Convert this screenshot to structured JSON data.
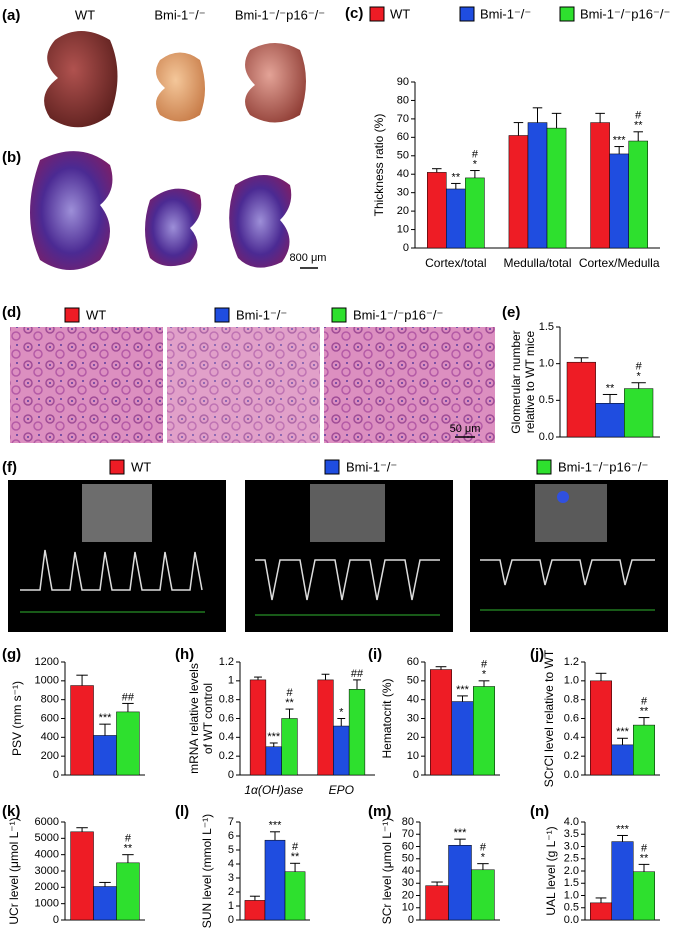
{
  "figure": {
    "a": {
      "label": "(a)",
      "names": [
        "WT",
        "Bmi-1⁻/⁻",
        "Bmi-1⁻/⁻p16⁻/⁻"
      ]
    },
    "b": {
      "label": "(b)",
      "scale": "800 μm"
    },
    "d": {
      "label": "(d)",
      "legend": [
        "WT",
        "Bmi-1⁻/⁻",
        "Bmi-1⁻/⁻p16⁻/⁻"
      ],
      "scale": "50 μm"
    },
    "f": {
      "label": "(f)",
      "legend": [
        "WT",
        "Bmi-1⁻/⁻",
        "Bmi-1⁻/⁻p16⁻/⁻"
      ]
    }
  },
  "chart_data": [
    {
      "type": "bar",
      "label": "(c)",
      "ylabel": [
        "Thickness ratio (%)"
      ],
      "legend": true,
      "categories": [
        "Cortex/total",
        "Medulla/total",
        "Cortex/Medulla"
      ],
      "ylim": [
        0,
        90
      ],
      "yticks": [
        0,
        10,
        20,
        30,
        40,
        50,
        60,
        70,
        80,
        90
      ],
      "series": [
        {
          "name": "WT",
          "color": "#ee1c25",
          "values": [
            41,
            61,
            68
          ],
          "errors": [
            2,
            7,
            5
          ],
          "annotations": [
            null,
            null,
            null
          ]
        },
        {
          "name": "Bmi-1⁻/⁻",
          "color": "#1f4de0",
          "values": [
            32,
            68,
            51
          ],
          "errors": [
            3,
            8,
            4
          ],
          "annotations": [
            [
              "**"
            ],
            null,
            [
              "***"
            ]
          ]
        },
        {
          "name": "Bmi-1⁻/⁻p16⁻/⁻",
          "color": "#2ee02e",
          "values": [
            38,
            65,
            58
          ],
          "errors": [
            4,
            8,
            5
          ],
          "annotations": [
            [
              "#",
              "*"
            ],
            null,
            [
              "#",
              "**"
            ]
          ]
        }
      ]
    },
    {
      "type": "bar",
      "label": "(e)",
      "ylabel": [
        "Glomerular number",
        "relative to WT mice"
      ],
      "ylim": [
        0,
        1.5
      ],
      "yticks": [
        {
          "value": 0,
          "label": "0.0"
        },
        0.5,
        {
          "value": 1,
          "label": "1.0"
        },
        1.5
      ],
      "series": [
        {
          "color": "#ee1c25",
          "values": [
            1.02
          ],
          "errors": [
            0.06
          ],
          "annotations": [
            null
          ]
        },
        {
          "color": "#1f4de0",
          "values": [
            0.46
          ],
          "errors": [
            0.12
          ],
          "annotations": [
            [
              "**"
            ]
          ]
        },
        {
          "color": "#2ee02e",
          "values": [
            0.66
          ],
          "errors": [
            0.08
          ],
          "annotations": [
            [
              "#",
              "*"
            ]
          ]
        }
      ]
    },
    {
      "type": "bar",
      "label": "(g)",
      "ylabel": [
        "PSV (mm s⁻¹)"
      ],
      "ylim": [
        0,
        1200
      ],
      "yticks": [
        0,
        200,
        400,
        600,
        800,
        1000,
        1200
      ],
      "series": [
        {
          "color": "#ee1c25",
          "values": [
            950
          ],
          "errors": [
            110
          ],
          "annotations": [
            null
          ]
        },
        {
          "color": "#1f4de0",
          "values": [
            420
          ],
          "errors": [
            120
          ],
          "annotations": [
            [
              "***"
            ]
          ]
        },
        {
          "color": "#2ee02e",
          "values": [
            670
          ],
          "errors": [
            90
          ],
          "annotations": [
            [
              "##"
            ]
          ]
        }
      ]
    },
    {
      "type": "bar",
      "label": "(h)",
      "ylabel": [
        "mRNA  relative levels",
        "of WT control"
      ],
      "categories": [
        "1α(OH)ase",
        "EPO"
      ],
      "italic_categories": true,
      "ylim": [
        0,
        1.2
      ],
      "yticks": [
        0,
        0.2,
        0.4,
        0.6,
        0.8,
        1,
        1.2
      ],
      "series": [
        {
          "color": "#ee1c25",
          "values": [
            1.01,
            1.01
          ],
          "errors": [
            0.03,
            0.06
          ],
          "annotations": [
            null,
            null
          ]
        },
        {
          "color": "#1f4de0",
          "values": [
            0.3,
            0.52
          ],
          "errors": [
            0.04,
            0.08
          ],
          "annotations": [
            [
              "***"
            ],
            [
              "*"
            ]
          ]
        },
        {
          "color": "#2ee02e",
          "values": [
            0.6,
            0.91
          ],
          "errors": [
            0.1,
            0.1
          ],
          "annotations": [
            [
              "#",
              "**"
            ],
            [
              "##"
            ]
          ]
        }
      ]
    },
    {
      "type": "bar",
      "label": "(i)",
      "ylabel": [
        "Hematocrit (%)"
      ],
      "ylim": [
        0,
        60
      ],
      "yticks": [
        0,
        10,
        20,
        30,
        40,
        50,
        60
      ],
      "series": [
        {
          "color": "#ee1c25",
          "values": [
            56
          ],
          "errors": [
            1.5
          ],
          "annotations": [
            null
          ]
        },
        {
          "color": "#1f4de0",
          "values": [
            39
          ],
          "errors": [
            3
          ],
          "annotations": [
            [
              "***"
            ]
          ]
        },
        {
          "color": "#2ee02e",
          "values": [
            47
          ],
          "errors": [
            3
          ],
          "annotations": [
            [
              "#",
              "*"
            ]
          ]
        }
      ]
    },
    {
      "type": "bar",
      "label": "(j)",
      "ylabel": [
        "SCrCl level relative to WT"
      ],
      "ylim": [
        0,
        1.2
      ],
      "yticks": [
        {
          "value": 0,
          "label": "0.0"
        },
        0.2,
        0.4,
        0.6,
        0.8,
        {
          "value": 1,
          "label": "1.0"
        },
        1.2
      ],
      "series": [
        {
          "color": "#ee1c25",
          "values": [
            1.0
          ],
          "errors": [
            0.08
          ],
          "annotations": [
            null
          ]
        },
        {
          "color": "#1f4de0",
          "values": [
            0.32
          ],
          "errors": [
            0.07
          ],
          "annotations": [
            [
              "***"
            ]
          ]
        },
        {
          "color": "#2ee02e",
          "values": [
            0.53
          ],
          "errors": [
            0.08
          ],
          "annotations": [
            [
              "#",
              "**"
            ]
          ]
        }
      ]
    },
    {
      "type": "bar",
      "label": "(k)",
      "ylabel": [
        "UCr level (μmol L⁻¹)"
      ],
      "ylim": [
        0,
        6000
      ],
      "yticks": [
        0,
        1000,
        2000,
        3000,
        4000,
        5000,
        6000
      ],
      "series": [
        {
          "color": "#ee1c25",
          "values": [
            5400
          ],
          "errors": [
            250
          ],
          "annotations": [
            null
          ]
        },
        {
          "color": "#1f4de0",
          "values": [
            2050
          ],
          "errors": [
            250
          ],
          "annotations": [
            null
          ]
        },
        {
          "color": "#2ee02e",
          "values": [
            3500
          ],
          "errors": [
            500
          ],
          "annotations": [
            [
              "#",
              "**"
            ]
          ]
        }
      ]
    },
    {
      "type": "bar",
      "label": "(l)",
      "ylabel": [
        "SUN level (mmol L⁻¹)"
      ],
      "ylim": [
        0,
        7
      ],
      "yticks": [
        0,
        1,
        2,
        3,
        4,
        5,
        6,
        7
      ],
      "series": [
        {
          "color": "#ee1c25",
          "values": [
            1.4
          ],
          "errors": [
            0.3
          ],
          "annotations": [
            null
          ]
        },
        {
          "color": "#1f4de0",
          "values": [
            5.7
          ],
          "errors": [
            0.6
          ],
          "annotations": [
            [
              "***"
            ]
          ]
        },
        {
          "color": "#2ee02e",
          "values": [
            3.45
          ],
          "errors": [
            0.6
          ],
          "annotations": [
            [
              "#",
              "**"
            ]
          ]
        }
      ]
    },
    {
      "type": "bar",
      "label": "(m)",
      "ylabel": [
        "SCr level (μmol L⁻¹)"
      ],
      "ylim": [
        0,
        80
      ],
      "yticks": [
        0,
        10,
        20,
        30,
        40,
        50,
        60,
        70,
        80
      ],
      "series": [
        {
          "color": "#ee1c25",
          "values": [
            28
          ],
          "errors": [
            3
          ],
          "annotations": [
            null
          ]
        },
        {
          "color": "#1f4de0",
          "values": [
            61
          ],
          "errors": [
            5
          ],
          "annotations": [
            [
              "***"
            ]
          ]
        },
        {
          "color": "#2ee02e",
          "values": [
            41
          ],
          "errors": [
            5
          ],
          "annotations": [
            [
              "#",
              "*"
            ]
          ]
        }
      ]
    },
    {
      "type": "bar",
      "label": "(n)",
      "ylabel": [
        "UAL level (g L⁻¹)"
      ],
      "ylim": [
        0,
        4
      ],
      "yticks": [
        {
          "value": 0,
          "label": "0.0"
        },
        0.5,
        {
          "value": 1,
          "label": "1.0"
        },
        1.5,
        {
          "value": 2,
          "label": "2.0"
        },
        2.5,
        {
          "value": 3,
          "label": "3.0"
        },
        3.5,
        {
          "value": 4,
          "label": "4.0"
        }
      ],
      "series": [
        {
          "color": "#ee1c25",
          "values": [
            0.7
          ],
          "errors": [
            0.2
          ],
          "annotations": [
            null
          ]
        },
        {
          "color": "#1f4de0",
          "values": [
            3.2
          ],
          "errors": [
            0.25
          ],
          "annotations": [
            [
              "***"
            ]
          ]
        },
        {
          "color": "#2ee02e",
          "values": [
            1.97
          ],
          "errors": [
            0.3
          ],
          "annotations": [
            [
              "#",
              "**"
            ]
          ]
        }
      ]
    }
  ]
}
